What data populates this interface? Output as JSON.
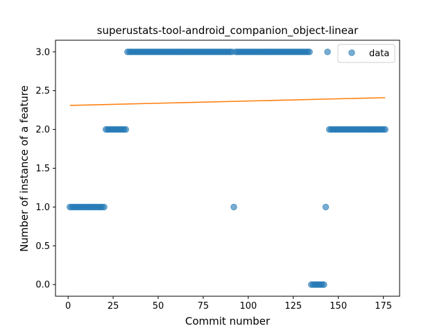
{
  "chart_data": {
    "type": "scatter",
    "title": "superustats-tool-android_companion_object-linear",
    "xlabel": "Commit number",
    "ylabel": "Number of instance of a feature",
    "xlim": [
      -7,
      184
    ],
    "ylim": [
      -0.15,
      3.15
    ],
    "xticks": [
      0,
      25,
      50,
      75,
      100,
      125,
      150,
      175
    ],
    "yticks": [
      0.0,
      0.5,
      1.0,
      1.5,
      2.0,
      2.5,
      3.0
    ],
    "xtick_labels": [
      "0",
      "25",
      "50",
      "75",
      "100",
      "125",
      "150",
      "175"
    ],
    "ytick_labels": [
      "0.0",
      "0.5",
      "1.0",
      "1.5",
      "2.0",
      "2.5",
      "3.0"
    ],
    "legend": {
      "position": "top-right",
      "entries": [
        "data"
      ]
    },
    "grid": false,
    "series": [
      {
        "name": "data",
        "kind": "scatter",
        "color": "#1f77b4",
        "segments": [
          {
            "x_start": 1,
            "x_end": 20,
            "y": 1
          },
          {
            "x_start": 21,
            "x_end": 32,
            "y": 2
          },
          {
            "x_start": 33,
            "x_end": 91,
            "y": 3
          },
          {
            "x_start": 92,
            "x_end": 92,
            "y": 1
          },
          {
            "x_start": 93,
            "x_end": 134,
            "y": 3
          },
          {
            "x_start": 135,
            "x_end": 142,
            "y": 0
          },
          {
            "x_start": 143,
            "x_end": 143,
            "y": 1
          },
          {
            "x_start": 144,
            "x_end": 144,
            "y": 3
          },
          {
            "x_start": 145,
            "x_end": 176,
            "y": 2
          }
        ]
      },
      {
        "kind": "line",
        "color": "#ff7f0e",
        "x": [
          1,
          176
        ],
        "y": [
          2.31,
          2.41
        ]
      }
    ]
  }
}
